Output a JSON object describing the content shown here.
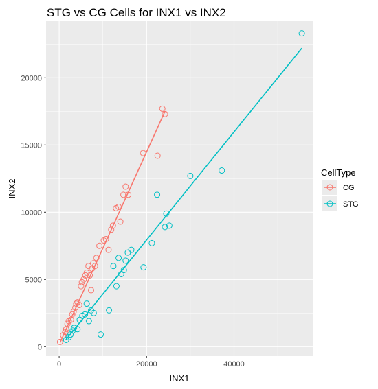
{
  "chart_data": {
    "type": "scatter",
    "title": "STG vs CG Cells for INX1 vs INX2",
    "xlabel": "INX1",
    "ylabel": "INX2",
    "xlim": [
      -3000,
      58000
    ],
    "ylim": [
      -700,
      24200
    ],
    "x_ticks": [
      0,
      20000,
      40000
    ],
    "x_tick_labels": [
      "0",
      "20000",
      "40000"
    ],
    "y_ticks": [
      0,
      5000,
      10000,
      15000,
      20000
    ],
    "y_tick_labels": [
      "0",
      "5000",
      "10000",
      "15000",
      "20000"
    ],
    "grid": true,
    "legend": {
      "title": "CellType",
      "position": "right"
    },
    "series": [
      {
        "name": "CG",
        "color": "#F8766D",
        "points": [
          [
            200,
            350
          ],
          [
            900,
            850
          ],
          [
            1400,
            1100
          ],
          [
            1600,
            1300
          ],
          [
            1900,
            1700
          ],
          [
            2200,
            1900
          ],
          [
            2700,
            2000
          ],
          [
            3000,
            2400
          ],
          [
            3300,
            2600
          ],
          [
            3700,
            2900
          ],
          [
            3900,
            3200
          ],
          [
            4200,
            3300
          ],
          [
            4600,
            3100
          ],
          [
            5000,
            4500
          ],
          [
            5200,
            4800
          ],
          [
            5600,
            5000
          ],
          [
            6000,
            5300
          ],
          [
            6300,
            5500
          ],
          [
            6700,
            6000
          ],
          [
            7000,
            5300
          ],
          [
            7300,
            4200
          ],
          [
            7500,
            5800
          ],
          [
            7800,
            6200
          ],
          [
            8200,
            6000
          ],
          [
            8500,
            6600
          ],
          [
            9200,
            7500
          ],
          [
            10200,
            7900
          ],
          [
            10700,
            8000
          ],
          [
            11300,
            7200
          ],
          [
            11900,
            8700
          ],
          [
            12300,
            9000
          ],
          [
            13000,
            10300
          ],
          [
            13600,
            10400
          ],
          [
            14000,
            9300
          ],
          [
            14700,
            11300
          ],
          [
            15200,
            11900
          ],
          [
            15800,
            11300
          ],
          [
            19200,
            14400
          ],
          [
            22500,
            14200
          ],
          [
            23600,
            17700
          ],
          [
            24200,
            17300
          ]
        ],
        "fit": [
          [
            200,
            300
          ],
          [
            24200,
            17500
          ]
        ]
      },
      {
        "name": "STG",
        "color": "#00BFC4",
        "points": [
          [
            1600,
            500
          ],
          [
            2200,
            700
          ],
          [
            2600,
            900
          ],
          [
            3100,
            1200
          ],
          [
            3400,
            1400
          ],
          [
            4200,
            1300
          ],
          [
            4700,
            2000
          ],
          [
            5300,
            2300
          ],
          [
            5900,
            2400
          ],
          [
            6300,
            3200
          ],
          [
            6800,
            1900
          ],
          [
            7300,
            2700
          ],
          [
            7900,
            2500
          ],
          [
            9500,
            900
          ],
          [
            11400,
            2700
          ],
          [
            12400,
            6000
          ],
          [
            13100,
            4500
          ],
          [
            13600,
            6600
          ],
          [
            14200,
            5400
          ],
          [
            14800,
            5700
          ],
          [
            15200,
            6400
          ],
          [
            15700,
            7000
          ],
          [
            16500,
            7200
          ],
          [
            19300,
            5900
          ],
          [
            21200,
            7700
          ],
          [
            22400,
            11300
          ],
          [
            24200,
            8900
          ],
          [
            24500,
            9900
          ],
          [
            25200,
            9000
          ],
          [
            30000,
            12700
          ],
          [
            37200,
            13100
          ],
          [
            55500,
            23300
          ]
        ],
        "fit": [
          [
            1500,
            500
          ],
          [
            55500,
            22200
          ]
        ]
      }
    ]
  }
}
